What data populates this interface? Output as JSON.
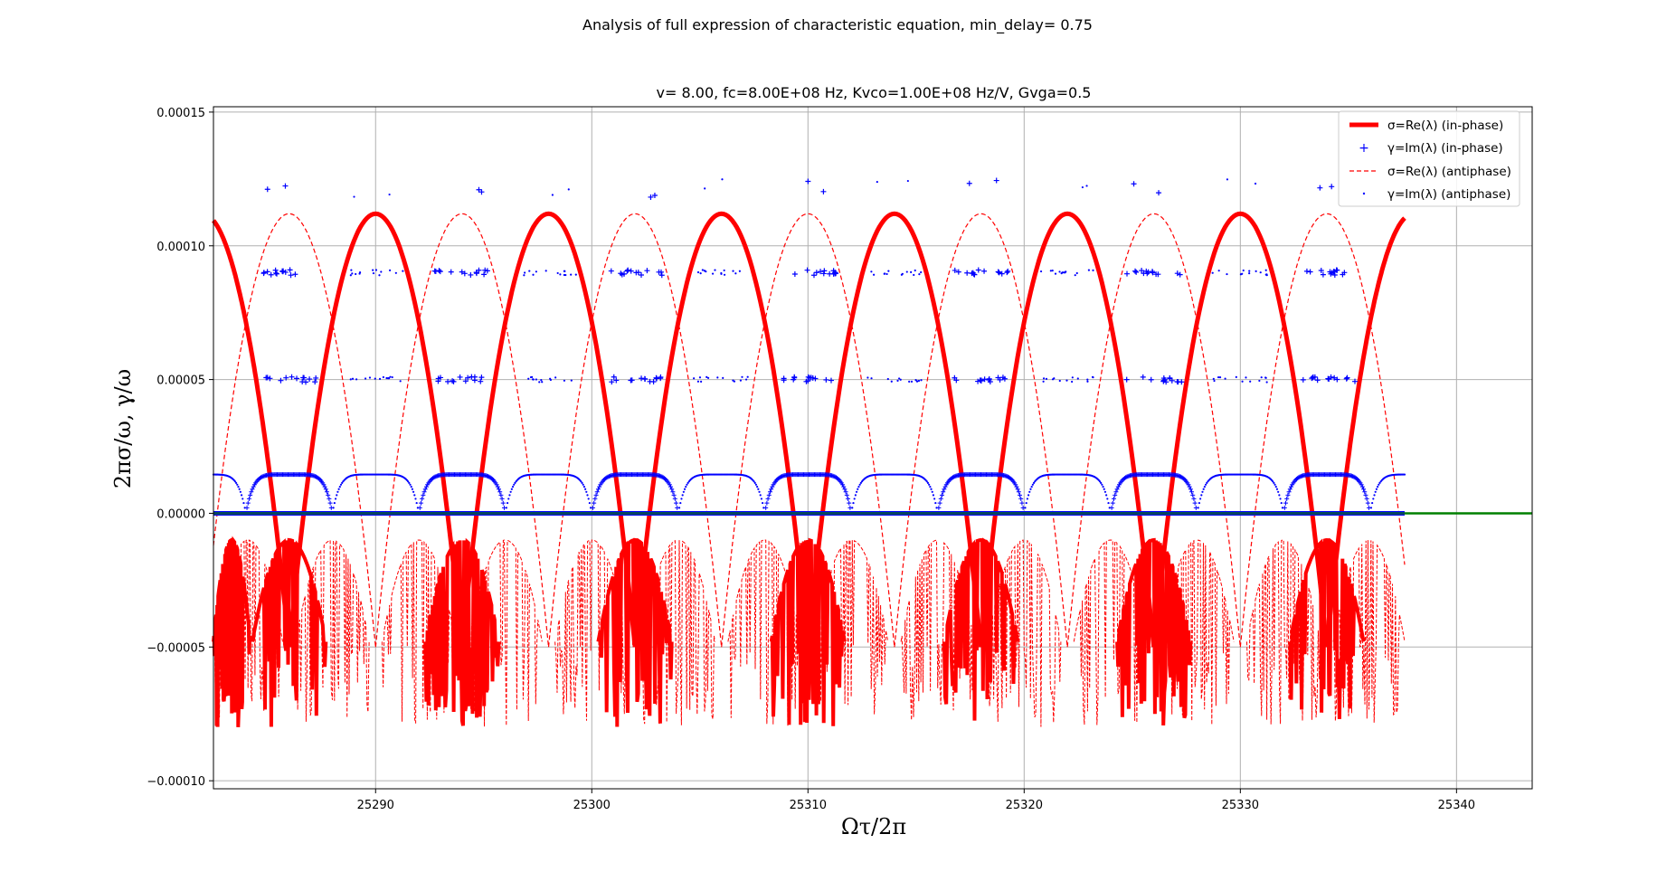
{
  "figure": {
    "suptitle": "Analysis of full expression of characteristic equation, min_delay= 0.75"
  },
  "chart_data": {
    "type": "line",
    "title": "v= 8.00, fc=8.00E+08 Hz, Kvco=1.00E+08 Hz/V, Gvga=0.5",
    "xlabel": "Ωτ/2π",
    "ylabel": "2πσ/ω, γ/ω",
    "xlim": [
      25282.5,
      25343.5
    ],
    "ylim": [
      -0.000103,
      0.000152
    ],
    "xticks": [
      25290,
      25300,
      25310,
      25320,
      25330,
      25340
    ],
    "xtick_labels": [
      "25290",
      "25300",
      "25310",
      "25320",
      "25330",
      "25340"
    ],
    "yticks": [
      -0.0001,
      -5e-05,
      0.0,
      5e-05,
      0.0001,
      0.00015
    ],
    "ytick_labels": [
      "−0.00010",
      "−0.00005",
      "0.00000",
      "0.00005",
      "0.00010",
      "0.00015"
    ],
    "grid": true,
    "legend_position": "top-right",
    "data_x_range": [
      25282.5,
      25337.6
    ],
    "period": 8,
    "arch_peak": 0.000112,
    "arch_base": -5e-05,
    "in_phase_arch_centers": [
      25290,
      25298,
      25306,
      25314,
      25322,
      25330
    ],
    "antiphase_arch_centers": [
      25286,
      25294,
      25302,
      25310,
      25318,
      25326,
      25334
    ],
    "gamma_levels": [
      0.0,
      1.5e-05,
      5e-05,
      9e-05,
      0.00012
    ],
    "negative_band": [
      -1e-05,
      -9e-05
    ],
    "series": [
      {
        "name": "σ=Re(λ) (in-phase)",
        "color": "#ff0000",
        "style": "solid-thick",
        "marker": "none"
      },
      {
        "name": "γ=Im(λ) (in-phase)",
        "color": "#0000ff",
        "style": "none",
        "marker": "+"
      },
      {
        "name": "σ=Re(λ) (antiphase)",
        "color": "#ff0000",
        "style": "dashed-thin",
        "marker": "none"
      },
      {
        "name": "γ=Im(λ) (antiphase)",
        "color": "#0000ff",
        "style": "none",
        "marker": "dot"
      }
    ],
    "zero_line": {
      "color": "#008000",
      "value": 0.0
    }
  },
  "colors": {
    "red": "#ff0000",
    "blue": "#0000ff",
    "green": "#008000",
    "grid": "#b0b0b0",
    "frame": "#000000"
  }
}
